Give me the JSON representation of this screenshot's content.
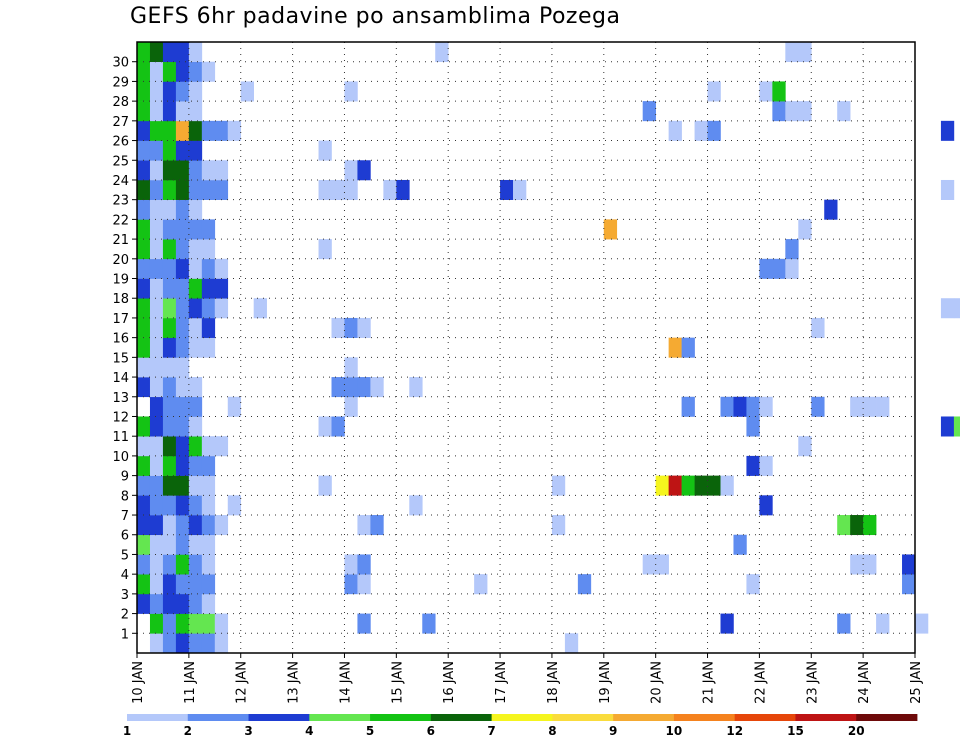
{
  "chart_data": {
    "type": "heatmap",
    "title": "GEFS 6hr padavine po ansamblima Pozega",
    "y_ticks": [
      "30",
      "29",
      "28",
      "27",
      "26",
      "25",
      "24",
      "23",
      "22",
      "21",
      "20",
      "19",
      "18",
      "17",
      "16",
      "15",
      "14",
      "13",
      "12",
      "11",
      "10",
      "9",
      "8",
      "7",
      "6",
      "5",
      "4",
      "3",
      "2",
      "1"
    ],
    "x_ticks": [
      "10 JAN",
      "11 JAN",
      "12 JAN",
      "13 JAN",
      "14 JAN",
      "15 JAN",
      "16 JAN",
      "17 JAN",
      "18 JAN",
      "19 JAN",
      "20 JAN",
      "21 JAN",
      "22 JAN",
      "23 JAN",
      "24 JAN",
      "25 JAN"
    ],
    "members": 31,
    "steps_per_day": 4,
    "grid": true,
    "colorbar": {
      "levels": [
        "1",
        "2",
        "3",
        "4",
        "5",
        "6",
        "7",
        "8",
        "9",
        "10",
        "12",
        "15",
        "20"
      ],
      "colors": [
        "#b4c8fa",
        "#5f8cf0",
        "#1e3cd2",
        "#64e650",
        "#14c314",
        "#0a640a",
        "#f5f51e",
        "#fadc3c",
        "#f5aa32",
        "#f5821e",
        "#e6460a",
        "#be1414",
        "#6e0a0a"
      ]
    },
    "cells": [
      [
        0,
        1,
        0
      ],
      [
        0,
        2,
        1
      ],
      [
        0,
        3,
        2
      ],
      [
        0,
        4,
        1
      ],
      [
        0,
        5,
        1
      ],
      [
        0,
        6,
        0
      ],
      [
        0,
        33,
        0
      ],
      [
        0,
        70,
        0
      ],
      [
        0,
        72,
        1
      ],
      [
        0,
        77,
        3
      ],
      [
        0,
        85,
        2
      ],
      [
        0,
        86,
        1
      ],
      [
        0,
        93,
        0
      ],
      [
        0,
        102,
        0
      ],
      [
        0,
        103,
        0
      ],
      [
        1,
        1,
        4
      ],
      [
        1,
        2,
        1
      ],
      [
        1,
        3,
        4
      ],
      [
        1,
        4,
        3
      ],
      [
        1,
        5,
        3
      ],
      [
        1,
        6,
        0
      ],
      [
        1,
        17,
        1
      ],
      [
        1,
        22,
        1
      ],
      [
        1,
        45,
        2
      ],
      [
        1,
        54,
        1
      ],
      [
        1,
        57,
        0
      ],
      [
        1,
        60,
        0
      ],
      [
        1,
        73,
        3
      ],
      [
        1,
        76,
        4
      ],
      [
        1,
        77,
        2
      ],
      [
        1,
        78,
        2
      ],
      [
        2,
        0,
        2
      ],
      [
        2,
        1,
        1
      ],
      [
        2,
        2,
        2
      ],
      [
        2,
        3,
        2
      ],
      [
        2,
        4,
        1
      ],
      [
        2,
        5,
        0
      ],
      [
        2,
        64,
        1
      ],
      [
        2,
        96,
        1
      ],
      [
        3,
        0,
        4
      ],
      [
        3,
        1,
        0
      ],
      [
        3,
        2,
        2
      ],
      [
        3,
        3,
        1
      ],
      [
        3,
        4,
        1
      ],
      [
        3,
        5,
        1
      ],
      [
        3,
        16,
        1
      ],
      [
        3,
        17,
        0
      ],
      [
        3,
        26,
        0
      ],
      [
        3,
        34,
        1
      ],
      [
        3,
        47,
        0
      ],
      [
        3,
        59,
        1
      ],
      [
        3,
        72,
        0
      ],
      [
        3,
        73,
        1
      ],
      [
        3,
        74,
        0
      ],
      [
        4,
        0,
        1
      ],
      [
        4,
        1,
        0
      ],
      [
        4,
        2,
        1
      ],
      [
        4,
        3,
        4
      ],
      [
        4,
        4,
        1
      ],
      [
        4,
        5,
        0
      ],
      [
        4,
        16,
        0
      ],
      [
        4,
        17,
        1
      ],
      [
        4,
        39,
        0
      ],
      [
        4,
        40,
        0
      ],
      [
        4,
        55,
        0
      ],
      [
        4,
        56,
        0
      ],
      [
        4,
        59,
        2
      ],
      [
        4,
        93,
        0
      ],
      [
        5,
        0,
        3
      ],
      [
        5,
        1,
        0
      ],
      [
        5,
        2,
        0
      ],
      [
        5,
        3,
        1
      ],
      [
        5,
        4,
        0
      ],
      [
        5,
        5,
        0
      ],
      [
        5,
        46,
        1
      ],
      [
        5,
        70,
        0
      ],
      [
        5,
        71,
        2
      ],
      [
        5,
        72,
        0
      ],
      [
        6,
        0,
        2
      ],
      [
        6,
        1,
        2
      ],
      [
        6,
        2,
        0
      ],
      [
        6,
        3,
        1
      ],
      [
        6,
        4,
        2
      ],
      [
        6,
        5,
        1
      ],
      [
        6,
        6,
        0
      ],
      [
        6,
        17,
        0
      ],
      [
        6,
        18,
        1
      ],
      [
        6,
        32,
        0
      ],
      [
        6,
        54,
        3
      ],
      [
        6,
        55,
        5
      ],
      [
        6,
        56,
        4
      ],
      [
        6,
        77,
        0
      ],
      [
        6,
        78,
        0
      ],
      [
        7,
        0,
        2
      ],
      [
        7,
        1,
        1
      ],
      [
        7,
        2,
        1
      ],
      [
        7,
        3,
        2
      ],
      [
        7,
        4,
        1
      ],
      [
        7,
        5,
        0
      ],
      [
        7,
        7,
        0
      ],
      [
        7,
        21,
        0
      ],
      [
        7,
        48,
        2
      ],
      [
        7,
        85,
        0
      ],
      [
        7,
        86,
        0
      ],
      [
        8,
        0,
        1
      ],
      [
        8,
        1,
        1
      ],
      [
        8,
        2,
        5
      ],
      [
        8,
        3,
        5
      ],
      [
        8,
        4,
        0
      ],
      [
        8,
        5,
        0
      ],
      [
        8,
        14,
        0
      ],
      [
        8,
        32,
        0
      ],
      [
        8,
        40,
        6
      ],
      [
        8,
        41,
        11
      ],
      [
        8,
        42,
        4
      ],
      [
        8,
        43,
        5
      ],
      [
        8,
        44,
        5
      ],
      [
        8,
        45,
        0
      ],
      [
        8,
        78,
        0
      ],
      [
        8,
        91,
        1
      ],
      [
        9,
        0,
        4
      ],
      [
        9,
        1,
        0
      ],
      [
        9,
        2,
        4
      ],
      [
        9,
        3,
        2
      ],
      [
        9,
        4,
        1
      ],
      [
        9,
        5,
        1
      ],
      [
        9,
        47,
        2
      ],
      [
        9,
        48,
        0
      ],
      [
        9,
        82,
        2
      ],
      [
        9,
        83,
        1
      ],
      [
        10,
        0,
        0
      ],
      [
        10,
        1,
        0
      ],
      [
        10,
        2,
        5
      ],
      [
        10,
        3,
        2
      ],
      [
        10,
        4,
        4
      ],
      [
        10,
        5,
        0
      ],
      [
        10,
        6,
        0
      ],
      [
        10,
        51,
        0
      ],
      [
        10,
        70,
        0
      ],
      [
        10,
        71,
        0
      ],
      [
        10,
        72,
        0
      ],
      [
        10,
        76,
        0
      ],
      [
        11,
        0,
        4
      ],
      [
        11,
        1,
        2
      ],
      [
        11,
        2,
        1
      ],
      [
        11,
        3,
        1
      ],
      [
        11,
        4,
        0
      ],
      [
        11,
        14,
        0
      ],
      [
        11,
        15,
        1
      ],
      [
        11,
        47,
        1
      ],
      [
        11,
        62,
        2
      ],
      [
        11,
        63,
        3
      ],
      [
        11,
        64,
        2
      ],
      [
        11,
        65,
        1
      ],
      [
        11,
        66,
        2
      ],
      [
        11,
        67,
        3
      ],
      [
        11,
        68,
        0
      ],
      [
        11,
        76,
        0
      ],
      [
        11,
        90,
        5
      ],
      [
        12,
        1,
        2
      ],
      [
        12,
        2,
        1
      ],
      [
        12,
        3,
        1
      ],
      [
        12,
        4,
        1
      ],
      [
        12,
        7,
        0
      ],
      [
        12,
        16,
        0
      ],
      [
        12,
        42,
        1
      ],
      [
        12,
        45,
        1
      ],
      [
        12,
        46,
        2
      ],
      [
        12,
        47,
        1
      ],
      [
        12,
        48,
        0
      ],
      [
        12,
        52,
        1
      ],
      [
        12,
        55,
        0
      ],
      [
        12,
        56,
        0
      ],
      [
        12,
        57,
        0
      ],
      [
        13,
        0,
        2
      ],
      [
        13,
        1,
        0
      ],
      [
        13,
        2,
        1
      ],
      [
        13,
        3,
        0
      ],
      [
        13,
        4,
        0
      ],
      [
        13,
        15,
        1
      ],
      [
        13,
        16,
        1
      ],
      [
        13,
        17,
        1
      ],
      [
        13,
        18,
        0
      ],
      [
        13,
        21,
        0
      ],
      [
        13,
        65,
        0
      ],
      [
        13,
        66,
        0
      ],
      [
        13,
        69,
        0
      ],
      [
        14,
        0,
        0
      ],
      [
        14,
        1,
        0
      ],
      [
        14,
        2,
        0
      ],
      [
        14,
        3,
        0
      ],
      [
        14,
        16,
        0
      ],
      [
        15,
        0,
        4
      ],
      [
        15,
        1,
        0
      ],
      [
        15,
        2,
        2
      ],
      [
        15,
        3,
        1
      ],
      [
        15,
        4,
        0
      ],
      [
        15,
        5,
        0
      ],
      [
        15,
        41,
        8
      ],
      [
        15,
        42,
        1
      ],
      [
        15,
        85,
        0
      ],
      [
        16,
        0,
        4
      ],
      [
        16,
        1,
        0
      ],
      [
        16,
        2,
        4
      ],
      [
        16,
        3,
        1
      ],
      [
        16,
        4,
        0
      ],
      [
        16,
        5,
        2
      ],
      [
        16,
        15,
        0
      ],
      [
        16,
        16,
        1
      ],
      [
        16,
        17,
        0
      ],
      [
        16,
        52,
        0
      ],
      [
        17,
        0,
        4
      ],
      [
        17,
        1,
        0
      ],
      [
        17,
        2,
        3
      ],
      [
        17,
        3,
        1
      ],
      [
        17,
        4,
        2
      ],
      [
        17,
        5,
        1
      ],
      [
        17,
        6,
        0
      ],
      [
        17,
        9,
        0
      ],
      [
        17,
        62,
        0
      ],
      [
        17,
        63,
        0
      ],
      [
        17,
        76,
        0
      ],
      [
        18,
        0,
        2
      ],
      [
        18,
        1,
        0
      ],
      [
        18,
        2,
        1
      ],
      [
        18,
        3,
        1
      ],
      [
        18,
        4,
        4
      ],
      [
        18,
        5,
        2
      ],
      [
        18,
        6,
        2
      ],
      [
        18,
        71,
        0
      ],
      [
        18,
        72,
        1
      ],
      [
        18,
        80,
        0
      ],
      [
        18,
        81,
        1
      ],
      [
        18,
        82,
        0
      ],
      [
        18,
        84,
        0
      ],
      [
        19,
        0,
        1
      ],
      [
        19,
        1,
        1
      ],
      [
        19,
        2,
        1
      ],
      [
        19,
        3,
        2
      ],
      [
        19,
        4,
        0
      ],
      [
        19,
        5,
        1
      ],
      [
        19,
        6,
        0
      ],
      [
        19,
        48,
        1
      ],
      [
        19,
        49,
        1
      ],
      [
        19,
        50,
        0
      ],
      [
        19,
        72,
        0
      ],
      [
        19,
        81,
        4
      ],
      [
        19,
        82,
        2
      ],
      [
        19,
        84,
        0
      ],
      [
        19,
        85,
        5
      ],
      [
        20,
        0,
        4
      ],
      [
        20,
        1,
        0
      ],
      [
        20,
        2,
        4
      ],
      [
        20,
        3,
        1
      ],
      [
        20,
        4,
        0
      ],
      [
        20,
        5,
        0
      ],
      [
        20,
        14,
        0
      ],
      [
        20,
        50,
        1
      ],
      [
        21,
        0,
        4
      ],
      [
        21,
        1,
        0
      ],
      [
        21,
        2,
        1
      ],
      [
        21,
        3,
        1
      ],
      [
        21,
        4,
        1
      ],
      [
        21,
        5,
        1
      ],
      [
        21,
        36,
        8
      ],
      [
        21,
        51,
        0
      ],
      [
        21,
        68,
        1
      ],
      [
        21,
        69,
        4
      ],
      [
        21,
        70,
        5
      ],
      [
        21,
        71,
        1
      ],
      [
        22,
        0,
        1
      ],
      [
        22,
        1,
        0
      ],
      [
        22,
        2,
        0
      ],
      [
        22,
        3,
        1
      ],
      [
        22,
        4,
        0
      ],
      [
        22,
        53,
        2
      ],
      [
        23,
        0,
        5
      ],
      [
        23,
        1,
        1
      ],
      [
        23,
        2,
        4
      ],
      [
        23,
        3,
        5
      ],
      [
        23,
        4,
        1
      ],
      [
        23,
        5,
        1
      ],
      [
        23,
        6,
        1
      ],
      [
        23,
        14,
        0
      ],
      [
        23,
        15,
        0
      ],
      [
        23,
        16,
        0
      ],
      [
        23,
        19,
        0
      ],
      [
        23,
        20,
        2
      ],
      [
        23,
        28,
        2
      ],
      [
        23,
        29,
        0
      ],
      [
        23,
        62,
        0
      ],
      [
        24,
        0,
        2
      ],
      [
        24,
        1,
        0
      ],
      [
        24,
        2,
        5
      ],
      [
        24,
        3,
        5
      ],
      [
        24,
        4,
        1
      ],
      [
        24,
        5,
        0
      ],
      [
        24,
        6,
        0
      ],
      [
        24,
        16,
        0
      ],
      [
        24,
        17,
        2
      ],
      [
        25,
        0,
        1
      ],
      [
        25,
        1,
        1
      ],
      [
        25,
        2,
        4
      ],
      [
        25,
        3,
        2
      ],
      [
        25,
        4,
        2
      ],
      [
        25,
        14,
        0
      ],
      [
        26,
        0,
        2
      ],
      [
        26,
        1,
        4
      ],
      [
        26,
        2,
        4
      ],
      [
        26,
        3,
        8
      ],
      [
        26,
        4,
        5
      ],
      [
        26,
        5,
        1
      ],
      [
        26,
        6,
        1
      ],
      [
        26,
        7,
        0
      ],
      [
        26,
        41,
        0
      ],
      [
        26,
        43,
        0
      ],
      [
        26,
        44,
        1
      ],
      [
        26,
        62,
        2
      ],
      [
        27,
        0,
        4
      ],
      [
        27,
        1,
        0
      ],
      [
        27,
        2,
        2
      ],
      [
        27,
        3,
        0
      ],
      [
        27,
        4,
        0
      ],
      [
        27,
        39,
        1
      ],
      [
        27,
        49,
        1
      ],
      [
        27,
        50,
        0
      ],
      [
        27,
        51,
        0
      ],
      [
        27,
        54,
        0
      ],
      [
        28,
        0,
        4
      ],
      [
        28,
        1,
        0
      ],
      [
        28,
        2,
        2
      ],
      [
        28,
        3,
        1
      ],
      [
        28,
        4,
        0
      ],
      [
        28,
        8,
        0
      ],
      [
        28,
        16,
        0
      ],
      [
        28,
        44,
        0
      ],
      [
        28,
        48,
        0
      ],
      [
        28,
        49,
        4
      ],
      [
        28,
        75,
        8
      ],
      [
        28,
        76,
        1
      ],
      [
        29,
        0,
        4
      ],
      [
        29,
        1,
        0
      ],
      [
        29,
        2,
        4
      ],
      [
        29,
        3,
        2
      ],
      [
        29,
        4,
        1
      ],
      [
        29,
        5,
        0
      ],
      [
        30,
        0,
        4
      ],
      [
        30,
        1,
        5
      ],
      [
        30,
        2,
        2
      ],
      [
        30,
        3,
        2
      ],
      [
        30,
        4,
        0
      ],
      [
        30,
        23,
        0
      ],
      [
        30,
        50,
        0
      ],
      [
        30,
        51,
        0
      ]
    ]
  }
}
